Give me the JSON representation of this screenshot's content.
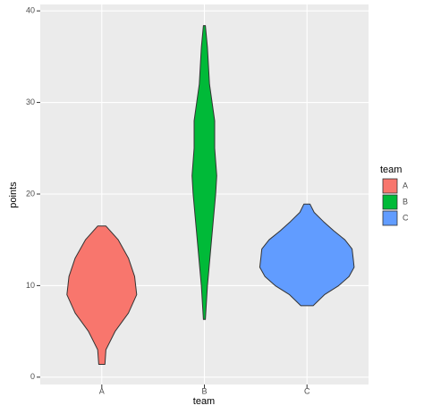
{
  "chart_data": {
    "type": "violin",
    "x_label": "team",
    "y_label": "points",
    "categories": [
      "A",
      "B",
      "C"
    ],
    "legend_title": "team",
    "legend": "right",
    "grid": true,
    "ylim": [
      -0.8,
      40.7
    ],
    "yticks": [
      0,
      10,
      20,
      30,
      40
    ],
    "series": [
      {
        "name": "A",
        "color": "#F8766D",
        "values": [
          1.4,
          3,
          5,
          7,
          9,
          11,
          13,
          15,
          16.5
        ],
        "density": [
          0.03,
          0.04,
          0.13,
          0.26,
          0.34,
          0.32,
          0.26,
          0.16,
          0.04
        ]
      },
      {
        "name": "B",
        "color": "#00BA38",
        "values": [
          6.3,
          10,
          15,
          20,
          22,
          25,
          28,
          32,
          36,
          38.4
        ],
        "density": [
          0.01,
          0.03,
          0.07,
          0.11,
          0.12,
          0.1,
          0.1,
          0.05,
          0.03,
          0.01
        ]
      },
      {
        "name": "C",
        "color": "#619CFF",
        "values": [
          7.8,
          9,
          10,
          11,
          12,
          13,
          14,
          15,
          16,
          17,
          18,
          18.9
        ],
        "density": [
          0.06,
          0.17,
          0.31,
          0.41,
          0.46,
          0.45,
          0.44,
          0.37,
          0.26,
          0.16,
          0.07,
          0.03
        ]
      }
    ]
  }
}
